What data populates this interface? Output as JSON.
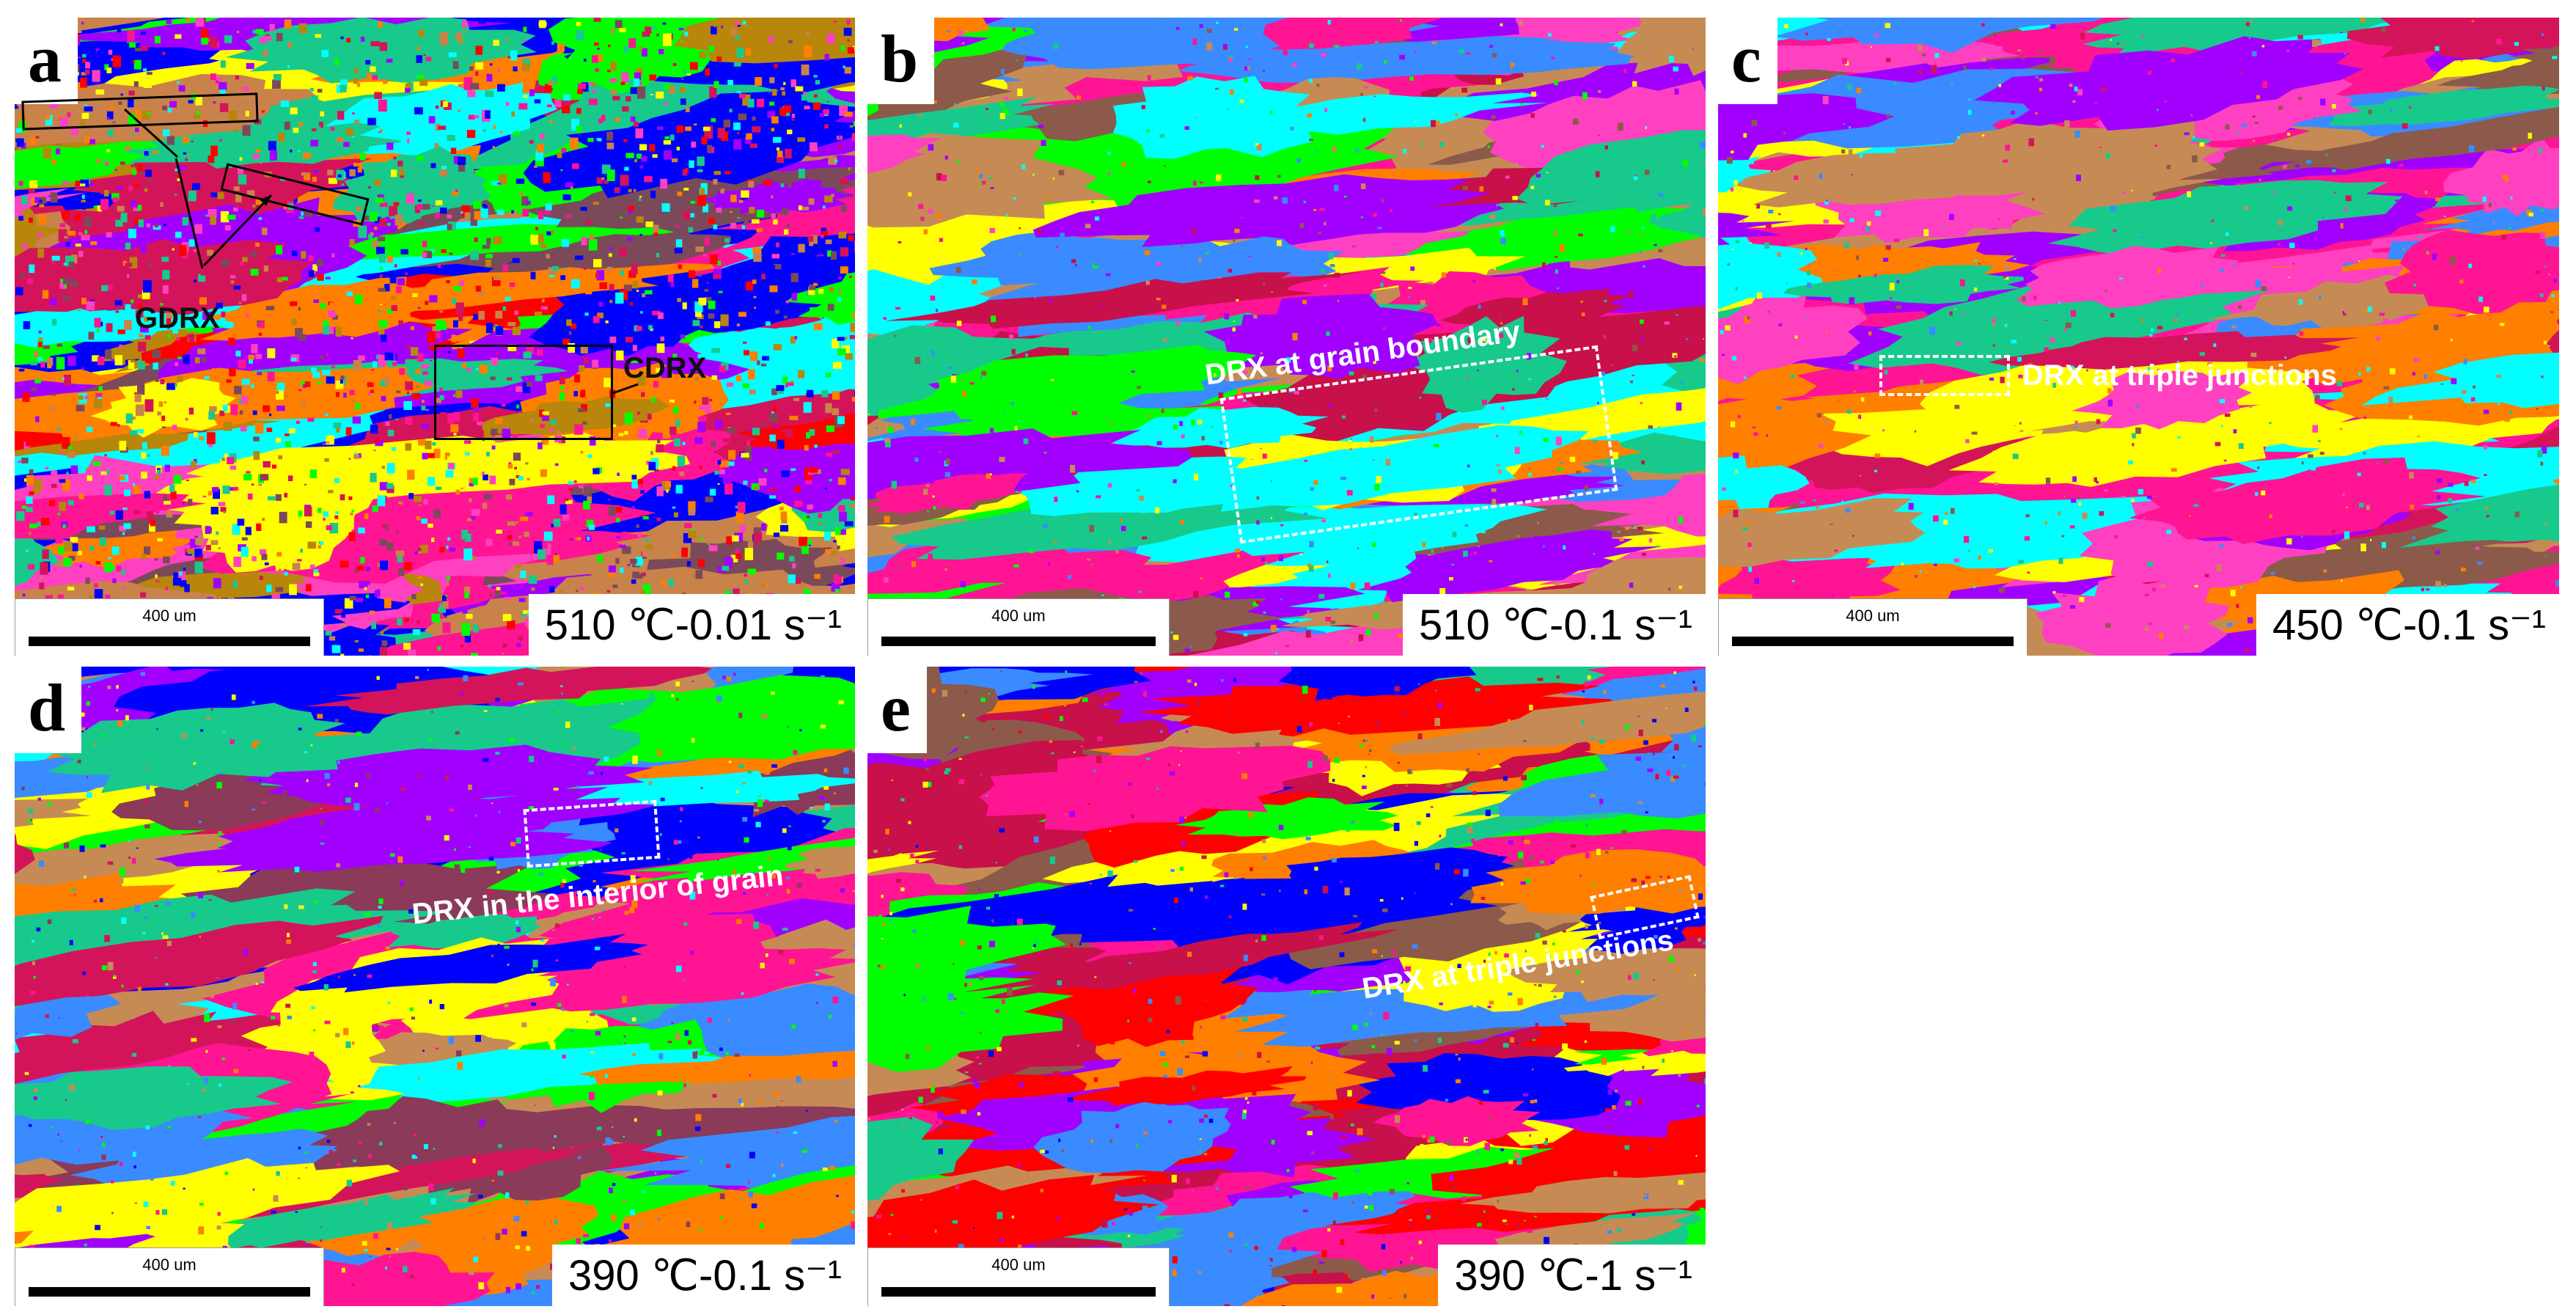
{
  "panels": [
    {
      "letter": "a",
      "scale_label": "400 um",
      "condition": "510 ℃-0.01 s⁻¹",
      "annotations": [
        "GDRX",
        "CDRX"
      ],
      "palette": [
        "#0000ff",
        "#a100ff",
        "#ff1493",
        "#ffff00",
        "#c9824a",
        "#ff7f00",
        "#00ff00",
        "#00ffff",
        "#ff0000",
        "#7b4a5a",
        "#d4145a",
        "#18c98c",
        "#b8860b",
        "#ff40c0"
      ]
    },
    {
      "letter": "b",
      "scale_label": "400 um",
      "condition": "510 ℃-0.1 s⁻¹",
      "annotations": [
        "DRX at grain boundary"
      ],
      "palette": [
        "#c68b55",
        "#ff1493",
        "#8b5a4a",
        "#a100ff",
        "#ffff00",
        "#ff7f00",
        "#00ffff",
        "#3a8bff",
        "#18c98c",
        "#c8104a",
        "#ff40c0",
        "#00ff00"
      ]
    },
    {
      "letter": "c",
      "scale_label": "400 um",
      "condition": "450 ℃-0.1 s⁻¹",
      "annotations": [
        "DRX at triple junctions"
      ],
      "palette": [
        "#ff1493",
        "#00ffff",
        "#ff7f00",
        "#a100ff",
        "#c68b55",
        "#3a8bff",
        "#ffff00",
        "#18c98c",
        "#d4145a",
        "#8b5a4a",
        "#ff40c0"
      ]
    },
    {
      "letter": "d",
      "scale_label": "400 um",
      "condition": "390 ℃-0.1 s⁻¹",
      "annotations": [
        "DRX in the interior of grain"
      ],
      "palette": [
        "#c68b55",
        "#a100ff",
        "#3a8bff",
        "#ff1493",
        "#00ff00",
        "#ff7f00",
        "#18c98c",
        "#0000ff",
        "#8b3a5a",
        "#ffff00",
        "#00ffff",
        "#d4145a"
      ]
    },
    {
      "letter": "e",
      "scale_label": "400 um",
      "condition": "390 ℃-1 s⁻¹",
      "annotations": [
        "DRX at triple junctions"
      ],
      "palette": [
        "#c8104a",
        "#ff0000",
        "#c68b55",
        "#a100ff",
        "#3a8bff",
        "#ff1493",
        "#18c98c",
        "#8b5a4a",
        "#0000ff",
        "#ffff00",
        "#ff7f00",
        "#00ff00"
      ]
    }
  ]
}
